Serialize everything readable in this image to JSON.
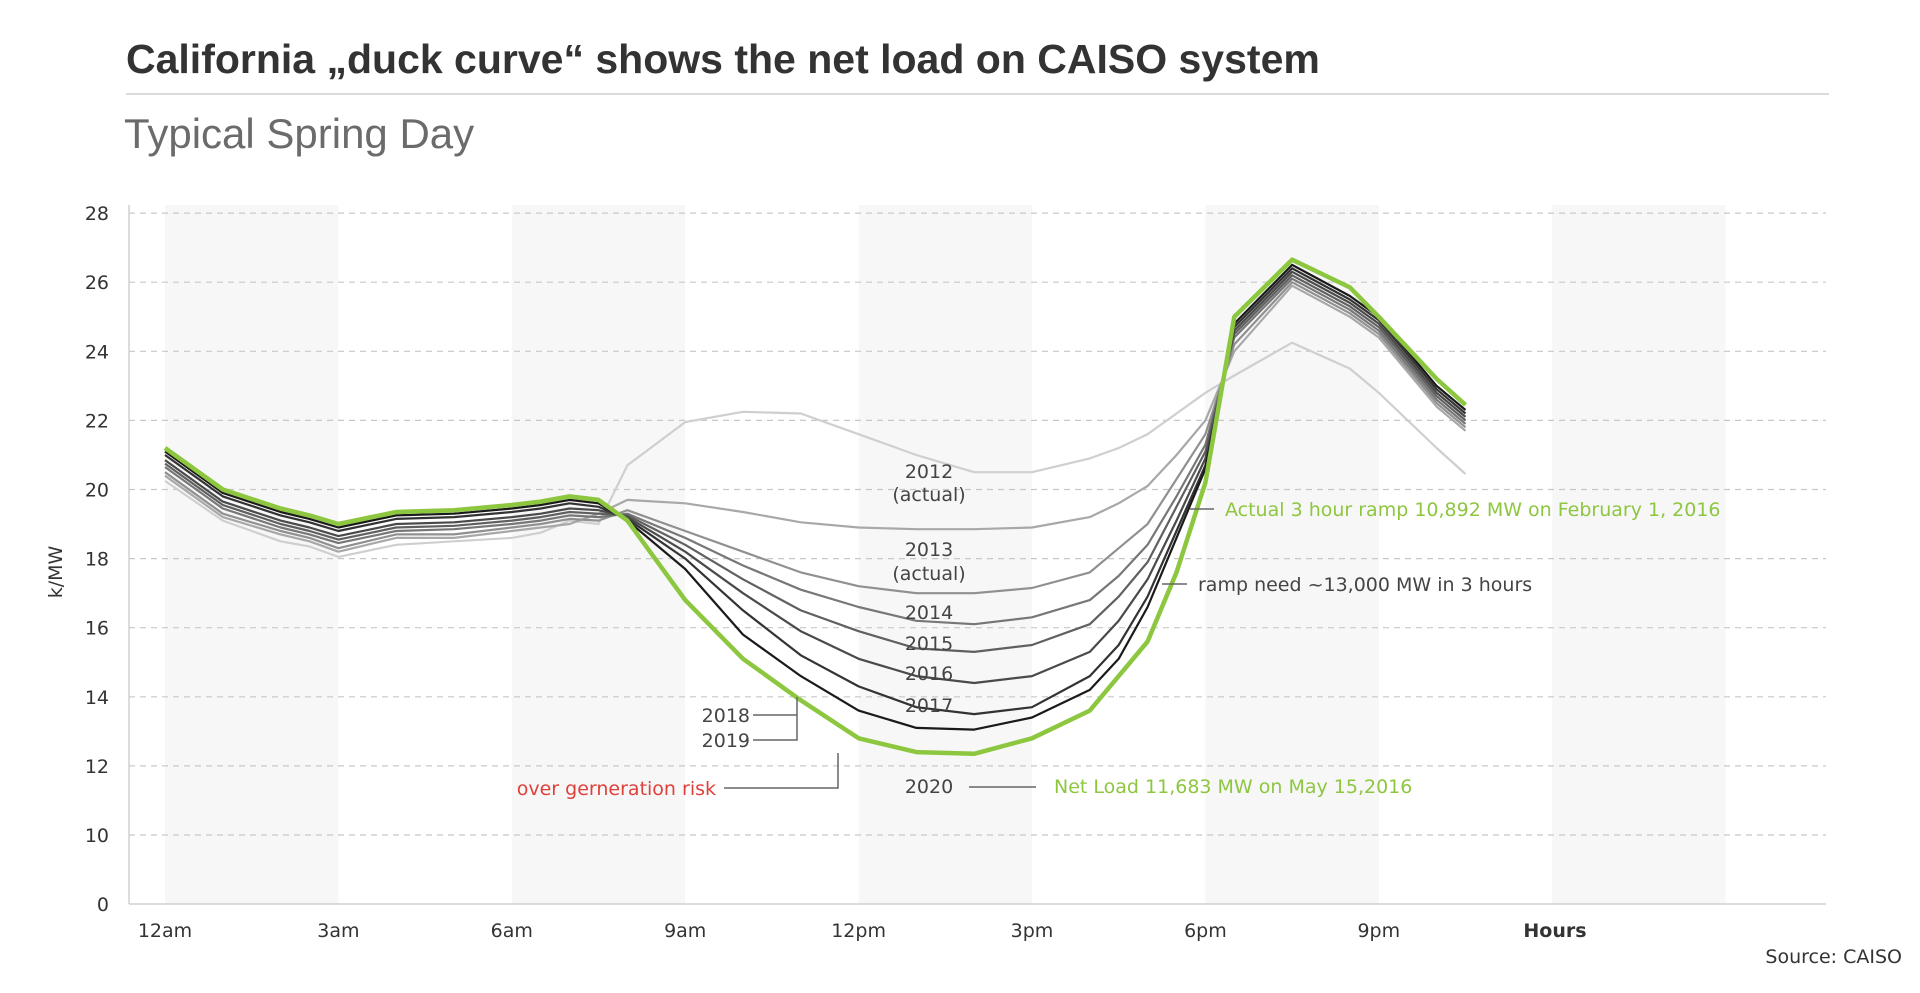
{
  "chart_data": {
    "type": "line",
    "title": "California „duck curve“ shows the net load on CAISO system",
    "subtitle": "Typical Spring Day",
    "ylabel": "k/MW",
    "xlabel": "Hours",
    "source": "Source: CAISO",
    "y_ticks": [
      "28",
      "26",
      "24",
      "22",
      "20",
      "18",
      "16",
      "14",
      "12",
      "10",
      "0"
    ],
    "x_ticks": [
      "12am",
      "3am",
      "6am",
      "9am",
      "12pm",
      "3pm",
      "6pm",
      "9pm"
    ],
    "ylim": [
      0,
      28
    ],
    "y_axis_break": "between 0 and 10",
    "grid": "horizontal dashed",
    "shaded_bands_hours": [
      [
        0,
        3
      ],
      [
        6,
        9
      ],
      [
        12,
        15
      ],
      [
        18,
        21
      ],
      [
        24,
        27
      ]
    ],
    "x": [
      0,
      1,
      2,
      2.5,
      3,
      4,
      5,
      6,
      6.5,
      7,
      7.5,
      8,
      9,
      10,
      11,
      12,
      13,
      14,
      15,
      16,
      16.5,
      17,
      17.5,
      18,
      18.5,
      19.5,
      20.5,
      21,
      22,
      22.5
    ],
    "series": [
      {
        "name": "2012 (actual)",
        "color": "#cfcfcf",
        "values": [
          20.25,
          19.1,
          18.5,
          18.35,
          18.05,
          18.4,
          18.5,
          18.6,
          18.75,
          19.1,
          19.0,
          20.7,
          21.95,
          22.25,
          22.2,
          21.6,
          21.0,
          20.5,
          20.5,
          20.9,
          21.2,
          21.6,
          22.2,
          22.8,
          23.3,
          24.25,
          23.5,
          22.8,
          21.2,
          20.45
        ]
      },
      {
        "name": "2013 (actual)",
        "color": "#a8a8a8",
        "values": [
          20.4,
          19.2,
          18.7,
          18.5,
          18.2,
          18.6,
          18.6,
          18.8,
          18.9,
          19.0,
          19.3,
          19.7,
          19.6,
          19.35,
          19.05,
          18.9,
          18.85,
          18.85,
          18.9,
          19.2,
          19.6,
          20.1,
          21.0,
          22.0,
          24.0,
          25.9,
          25.0,
          24.4,
          22.4,
          21.7
        ]
      },
      {
        "name": "2014",
        "color": "#909090",
        "values": [
          20.5,
          19.3,
          18.8,
          18.6,
          18.3,
          18.7,
          18.7,
          18.9,
          19.0,
          19.15,
          19.1,
          19.4,
          18.8,
          18.2,
          17.6,
          17.2,
          17.0,
          17.0,
          17.15,
          17.6,
          18.3,
          19.0,
          20.3,
          21.6,
          24.2,
          26.0,
          25.1,
          24.5,
          22.5,
          21.8
        ]
      },
      {
        "name": "2015",
        "color": "#777777",
        "values": [
          20.65,
          19.45,
          18.9,
          18.7,
          18.45,
          18.8,
          18.85,
          19.0,
          19.1,
          19.25,
          19.2,
          19.3,
          18.6,
          17.8,
          17.1,
          16.6,
          16.2,
          16.1,
          16.3,
          16.8,
          17.5,
          18.4,
          19.8,
          21.3,
          24.4,
          26.1,
          25.2,
          24.6,
          22.6,
          21.9
        ]
      },
      {
        "name": "2016",
        "color": "#606060",
        "values": [
          20.75,
          19.55,
          19.0,
          18.8,
          18.55,
          18.9,
          18.95,
          19.1,
          19.2,
          19.35,
          19.3,
          19.25,
          18.4,
          17.4,
          16.5,
          15.9,
          15.4,
          15.3,
          15.5,
          16.1,
          16.9,
          17.9,
          19.5,
          21.1,
          24.5,
          26.2,
          25.3,
          24.7,
          22.7,
          22.0
        ]
      },
      {
        "name": "2017",
        "color": "#4a4a4a",
        "values": [
          20.85,
          19.65,
          19.1,
          18.9,
          18.65,
          19.0,
          19.05,
          19.2,
          19.3,
          19.45,
          19.4,
          19.2,
          18.2,
          17.0,
          15.9,
          15.1,
          14.6,
          14.4,
          14.6,
          15.3,
          16.2,
          17.4,
          19.1,
          20.9,
          24.6,
          26.3,
          25.4,
          24.8,
          22.8,
          22.1
        ]
      },
      {
        "name": "2018",
        "color": "#333333",
        "values": [
          21.0,
          19.8,
          19.25,
          19.05,
          18.8,
          19.15,
          19.2,
          19.35,
          19.45,
          19.6,
          19.5,
          19.15,
          18.0,
          16.5,
          15.2,
          14.3,
          13.7,
          13.5,
          13.7,
          14.6,
          15.5,
          16.9,
          18.8,
          20.7,
          24.7,
          26.4,
          25.5,
          24.9,
          22.9,
          22.2
        ]
      },
      {
        "name": "2019",
        "color": "#1a1a1a",
        "values": [
          21.1,
          19.9,
          19.35,
          19.15,
          18.9,
          19.25,
          19.3,
          19.45,
          19.55,
          19.7,
          19.6,
          19.1,
          17.7,
          15.8,
          14.6,
          13.6,
          13.1,
          13.05,
          13.4,
          14.2,
          15.1,
          16.6,
          18.6,
          20.6,
          24.8,
          26.5,
          25.6,
          25.0,
          23.0,
          22.3
        ]
      },
      {
        "name": "2020",
        "color": "#8dc63f",
        "values": [
          21.2,
          20.0,
          19.45,
          19.25,
          19.0,
          19.35,
          19.4,
          19.55,
          19.65,
          19.8,
          19.7,
          19.1,
          16.8,
          15.1,
          13.9,
          12.8,
          12.4,
          12.35,
          12.8,
          13.6,
          14.6,
          15.6,
          17.6,
          20.2,
          25.0,
          26.65,
          25.85,
          25.0,
          23.2,
          22.45
        ]
      }
    ],
    "annotations": {
      "y2012": "2012",
      "actual1": "(actual)",
      "y2013": "2013",
      "actual2": "(actual)",
      "y2014": "2014",
      "y2015": "2015",
      "y2016": "2016",
      "y2017": "2017",
      "y2018": "2018",
      "y2019": "2019",
      "y2020": "2020",
      "over_generation": "over gerneration risk",
      "net_load": "Net Load 11,683 MW on May 15,2016",
      "actual_ramp": "Actual 3 hour ramp 10,892 MW on February 1, 2016",
      "ramp_need": "ramp need ~13,000 MW in 3 hours"
    },
    "colors": {
      "accent_green": "#8dc63f",
      "risk_red": "#e0403a"
    }
  }
}
